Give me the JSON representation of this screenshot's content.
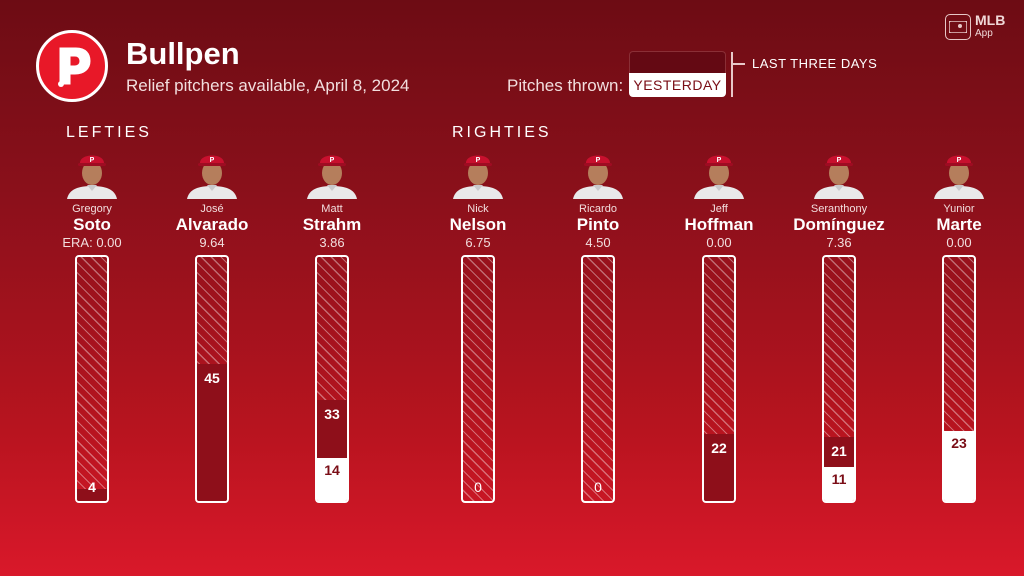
{
  "header": {
    "title": "Bullpen",
    "subtitle": "Relief pitchers available, April 8, 2024",
    "pitches_label": "Pitches thrown:",
    "legend_yesterday": "YESTERDAY",
    "legend_three_days": "LAST THREE DAYS",
    "app_brand": "MLB",
    "app_sub": "App",
    "colors": {
      "bg_top": "#6d0c14",
      "bg_bottom": "#d9182a",
      "three_days": "#8e0f1a",
      "yesterday": "#ffffff",
      "accent": "#e81828"
    }
  },
  "sections": {
    "lefties": "LEFTIES",
    "righties": "RIGHTIES"
  },
  "scale_max": 80,
  "pitchers": [
    {
      "first": "Gregory",
      "last": "Soto",
      "era": "ERA: 0.00",
      "three_days": 4,
      "yesterday": 0,
      "three_label": "4",
      "yesterday_label": ""
    },
    {
      "first": "José",
      "last": "Alvarado",
      "era": "9.64",
      "three_days": 45,
      "yesterday": 0,
      "three_label": "45",
      "yesterday_label": ""
    },
    {
      "first": "Matt",
      "last": "Strahm",
      "era": "3.86",
      "three_days": 33,
      "yesterday": 14,
      "three_label": "33",
      "yesterday_label": "14"
    },
    {
      "first": "Nick",
      "last": "Nelson",
      "era": "6.75",
      "three_days": 0,
      "yesterday": 0,
      "three_label": "0",
      "yesterday_label": ""
    },
    {
      "first": "Ricardo",
      "last": "Pinto",
      "era": "4.50",
      "three_days": 0,
      "yesterday": 0,
      "three_label": "0",
      "yesterday_label": ""
    },
    {
      "first": "Jeff",
      "last": "Hoffman",
      "era": "0.00",
      "three_days": 22,
      "yesterday": 0,
      "three_label": "22",
      "yesterday_label": ""
    },
    {
      "first": "Seranthony",
      "last": "Domínguez",
      "era": "7.36",
      "three_days": 21,
      "yesterday": 11,
      "three_label": "21",
      "yesterday_label": "11"
    },
    {
      "first": "Yunior",
      "last": "Marte",
      "era": "0.00",
      "three_days": 23,
      "yesterday": 23,
      "three_label": "",
      "yesterday_label": "23"
    }
  ]
}
